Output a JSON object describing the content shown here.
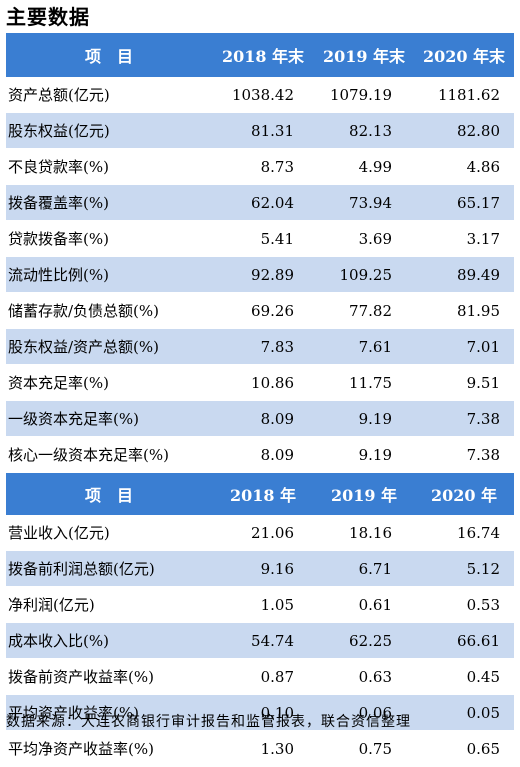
{
  "title": "主要数据",
  "table1": {
    "header": [
      "项　目",
      "2018 年末",
      "2019 年末",
      "2020 年末"
    ],
    "rows": [
      {
        "label": "资产总额(亿元)",
        "values": [
          "1038.42",
          "1079.19",
          "1181.62"
        ]
      },
      {
        "label": "股东权益(亿元)",
        "values": [
          "81.31",
          "82.13",
          "82.80"
        ]
      },
      {
        "label": "不良贷款率(%)",
        "values": [
          "8.73",
          "4.99",
          "4.86"
        ]
      },
      {
        "label": "拨备覆盖率(%)",
        "values": [
          "62.04",
          "73.94",
          "65.17"
        ]
      },
      {
        "label": "贷款拨备率(%)",
        "values": [
          "5.41",
          "3.69",
          "3.17"
        ]
      },
      {
        "label": "流动性比例(%)",
        "values": [
          "92.89",
          "109.25",
          "89.49"
        ]
      },
      {
        "label": "储蓄存款/负债总额(%)",
        "values": [
          "69.26",
          "77.82",
          "81.95"
        ]
      },
      {
        "label": "股东权益/资产总额(%)",
        "values": [
          "7.83",
          "7.61",
          "7.01"
        ]
      },
      {
        "label": "资本充足率(%)",
        "values": [
          "10.86",
          "11.75",
          "9.51"
        ]
      },
      {
        "label": "一级资本充足率(%)",
        "values": [
          "8.09",
          "9.19",
          "7.38"
        ]
      },
      {
        "label": "核心一级资本充足率(%)",
        "values": [
          "8.09",
          "9.19",
          "7.38"
        ]
      }
    ]
  },
  "table2": {
    "header": [
      "项　目",
      "2018 年",
      "2019 年",
      "2020 年"
    ],
    "rows": [
      {
        "label": "营业收入(亿元)",
        "values": [
          "21.06",
          "18.16",
          "16.74"
        ]
      },
      {
        "label": "拨备前利润总额(亿元)",
        "values": [
          "9.16",
          "6.71",
          "5.12"
        ]
      },
      {
        "label": "净利润(亿元)",
        "values": [
          "1.05",
          "0.61",
          "0.53"
        ]
      },
      {
        "label": "成本收入比(%)",
        "values": [
          "54.74",
          "62.25",
          "66.61"
        ]
      },
      {
        "label": "拨备前资产收益率(%)",
        "values": [
          "0.87",
          "0.63",
          "0.45"
        ]
      },
      {
        "label": "平均资产收益率(%)",
        "values": [
          "0.10",
          "0.06",
          "0.05"
        ]
      },
      {
        "label": "平均净资产收益率(%)",
        "values": [
          "1.30",
          "0.75",
          "0.65"
        ]
      }
    ]
  },
  "source": "数据来源：大连农商银行审计报告和监管报表，联合资信整理",
  "colors": {
    "header_bg": "#3a7ed2",
    "shade_bg": "#c9d9f0"
  }
}
